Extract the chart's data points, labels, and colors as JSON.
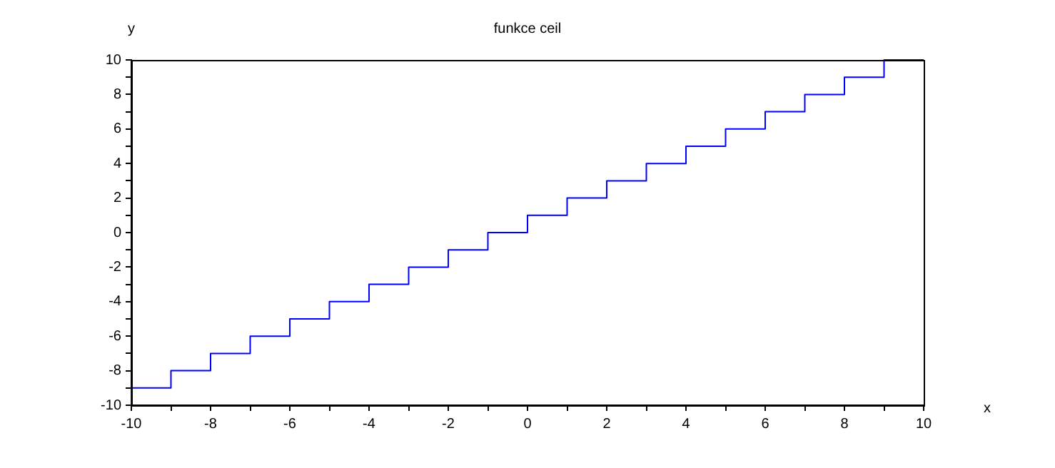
{
  "chart_data": {
    "type": "step",
    "title": "funkce ceil",
    "xlabel": "x",
    "ylabel": "y",
    "series": [
      {
        "color": "#0000ff",
        "x": [
          -10,
          -10,
          -9,
          -8,
          -7,
          -6,
          -5,
          -4,
          -3,
          -2,
          -1,
          0,
          1,
          2,
          3,
          4,
          5,
          6,
          7,
          8,
          9,
          10
        ],
        "values": [
          -10,
          -9,
          -8,
          -7,
          -6,
          -5,
          -4,
          -3,
          -2,
          -1,
          0,
          1,
          2,
          3,
          4,
          5,
          6,
          7,
          8,
          9,
          10,
          10
        ]
      }
    ],
    "xlim": [
      -10,
      10
    ],
    "ylim": [
      -10,
      10
    ],
    "xticks": [
      -10,
      {
        "value": -9,
        "label": null
      },
      -8,
      {
        "value": -7,
        "label": null
      },
      -6,
      {
        "value": -5,
        "label": null
      },
      -4,
      {
        "value": -3,
        "label": null
      },
      -2,
      {
        "value": -1,
        "label": null
      },
      0,
      {
        "value": 1,
        "label": null
      },
      2,
      {
        "value": 3,
        "label": null
      },
      4,
      {
        "value": 5,
        "label": null
      },
      6,
      {
        "value": 7,
        "label": null
      },
      8,
      {
        "value": 9,
        "label": null
      },
      10
    ],
    "yticks": [
      -10,
      {
        "value": -9,
        "label": null
      },
      -8,
      {
        "value": -7,
        "label": null
      },
      -6,
      {
        "value": -5,
        "label": null
      },
      -4,
      {
        "value": -3,
        "label": null
      },
      -2,
      {
        "value": -1,
        "label": null
      },
      0,
      {
        "value": 1,
        "label": null
      },
      2,
      {
        "value": 3,
        "label": null
      },
      4,
      {
        "value": 5,
        "label": null
      },
      6,
      {
        "value": 7,
        "label": null
      },
      8,
      {
        "value": 9,
        "label": null
      },
      10
    ],
    "grid": false,
    "legend": false,
    "marker": "none",
    "line_style": "solid"
  }
}
